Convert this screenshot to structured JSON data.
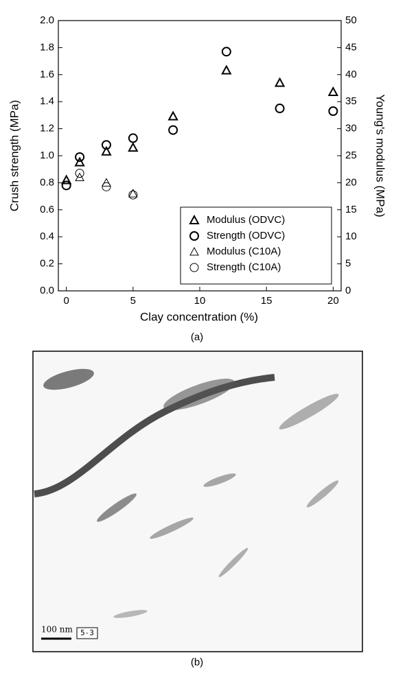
{
  "chart_data": {
    "type": "scatter",
    "xlabel": "Clay concentration (%)",
    "ylabel": "Crush strength (MPa)",
    "y2label": "Young's modulus (MPa)",
    "caption": "(a)",
    "xlim": [
      -0.6,
      20.6
    ],
    "xticks": [
      0,
      5,
      10,
      15,
      20
    ],
    "ylim": [
      0,
      2
    ],
    "yticks": [
      {
        "value": 0,
        "label": "0.0"
      },
      0.2,
      0.4,
      0.6,
      0.8,
      {
        "value": 1,
        "label": "1.0"
      },
      1.2,
      1.4,
      1.6,
      1.8,
      {
        "value": 2,
        "label": "2.0"
      }
    ],
    "y2lim": [
      0,
      50
    ],
    "y2ticks": [
      0,
      5,
      10,
      15,
      20,
      25,
      30,
      35,
      40,
      45,
      50
    ],
    "legend": "lower right",
    "series": [
      {
        "name": "Modulus (ODVC)",
        "color": "#000000",
        "marker": "triangle",
        "line_width": 2,
        "axis": "y2",
        "x": [
          0,
          1,
          3,
          5,
          8,
          12,
          16,
          20
        ],
        "values": [
          20.5,
          23.8,
          25.8,
          26.5,
          32.3,
          40.8,
          38.5,
          36.8
        ]
      },
      {
        "name": "Strength (ODVC)",
        "color": "#000000",
        "marker": "circle",
        "line_width": 2,
        "x": [
          0,
          1,
          3,
          5,
          8,
          12,
          16,
          20
        ],
        "values": [
          0.78,
          0.99,
          1.08,
          1.13,
          1.19,
          1.77,
          1.35,
          1.33
        ]
      },
      {
        "name": "Modulus (C10A)",
        "color": "#000000",
        "marker": "triangle",
        "line_width": 1,
        "axis": "y2",
        "x": [
          0,
          1,
          3,
          5
        ],
        "values": [
          20.5,
          21,
          20,
          18
        ]
      },
      {
        "name": "Strength (C10A)",
        "color": "#000000",
        "marker": "circle",
        "line_width": 1,
        "x": [
          0,
          1,
          3,
          5
        ],
        "values": [
          0.78,
          0.87,
          0.77,
          0.71
        ]
      }
    ]
  },
  "image_panel": {
    "scale_bar_label": "100 nm",
    "tag": "5-3",
    "caption": "(b)"
  }
}
